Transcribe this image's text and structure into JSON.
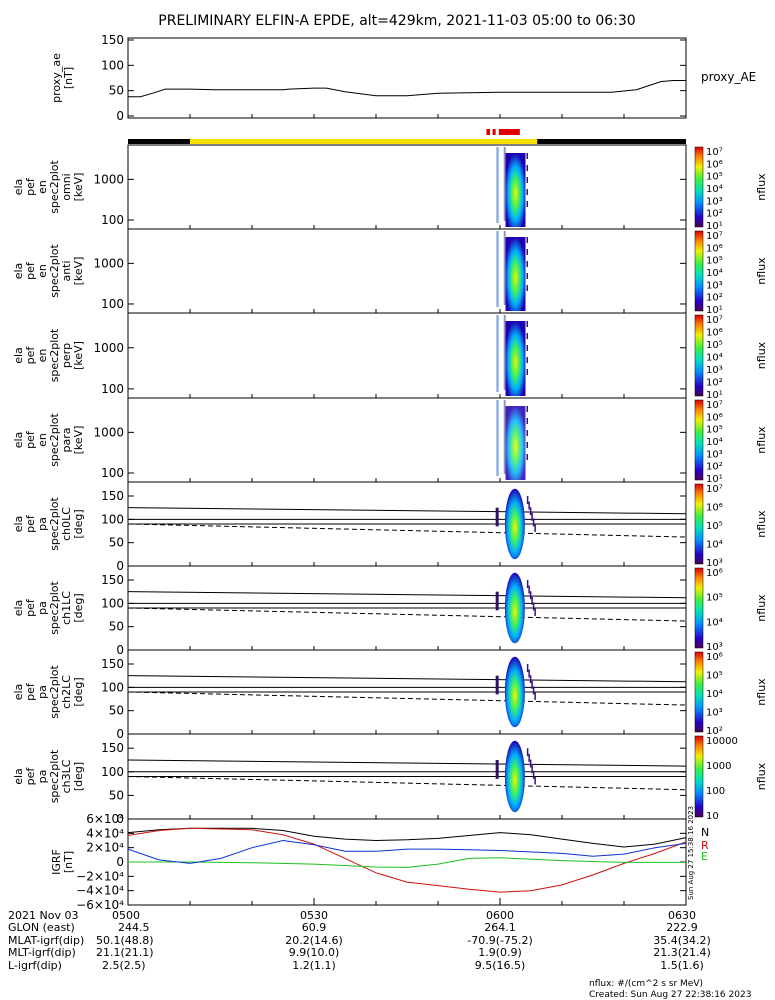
{
  "title": "PRELIMINARY ELFIN-A EPDE, alt=429km, 2021-11-03 05:00 to 06:30",
  "colors": {
    "axis": "#000000",
    "sci_yellow": "#f5e000",
    "sci_red": "#e00000",
    "grf_n": "#000000",
    "grf_r": "#d01010",
    "grf_e": "#20c020",
    "grf_z": "#1030d0",
    "label_n": "#000000",
    "label_r": "#d01010",
    "label_e": "#20c020",
    "label_z": "#9a2ad0"
  },
  "chart_data": [
    {
      "type": "line",
      "id": "proxy_ae",
      "ylabel": [
        "proxy_ae",
        "[nT]"
      ],
      "ylim": [
        0,
        150
      ],
      "yticks": [
        0,
        50,
        100,
        150
      ],
      "legend": "proxy_AE",
      "xlim": [
        0,
        90
      ],
      "series": [
        {
          "name": "proxy_AE",
          "x": [
            0,
            2,
            4,
            6,
            8,
            10,
            14,
            20,
            25,
            26,
            30,
            32,
            35,
            40,
            45,
            50,
            60,
            70,
            78,
            82,
            84,
            86,
            88,
            90
          ],
          "y": [
            38,
            38,
            45,
            53,
            53,
            53,
            52,
            52,
            52,
            53,
            55,
            55,
            48,
            40,
            40,
            45,
            47,
            47,
            47,
            52,
            60,
            68,
            70,
            70
          ]
        }
      ]
    },
    {
      "type": "bar",
      "id": "science_zone_bar",
      "segments": [
        {
          "x0": 0,
          "x1": 10,
          "color": "#000000"
        },
        {
          "x0": 10,
          "x1": 66,
          "color": "#f5e000"
        },
        {
          "x0": 66,
          "x1": 90,
          "color": "#000000"
        },
        {
          "x0": 57.8,
          "x1": 58.4,
          "color": "#e00000"
        },
        {
          "x0": 58.8,
          "x1": 59.3,
          "color": "#e00000"
        },
        {
          "x0": 59.8,
          "x1": 63.2,
          "color": "#e00000"
        }
      ]
    },
    {
      "type": "heatmap",
      "id": "spec_omni",
      "ylabel": [
        "ela",
        "pef",
        "en",
        "spec2plot",
        "omni",
        "[keV]"
      ],
      "ylog": true,
      "ylim": [
        60,
        7000
      ],
      "yticks": [
        100,
        1000
      ],
      "colorbar": {
        "label": "nflux",
        "ticks": [
          "10¹",
          "10²",
          "10³",
          "10⁴",
          "10⁵",
          "10⁶",
          "10⁷"
        ]
      }
    },
    {
      "type": "heatmap",
      "id": "spec_anti",
      "ylabel": [
        "ela",
        "pef",
        "en",
        "spec2plot",
        "anti",
        "[keV]"
      ],
      "ylog": true,
      "ylim": [
        60,
        7000
      ],
      "yticks": [
        100,
        1000
      ],
      "colorbar": {
        "label": "nflux",
        "ticks": [
          "10¹",
          "10²",
          "10³",
          "10⁴",
          "10⁵",
          "10⁶",
          "10⁷"
        ]
      }
    },
    {
      "type": "heatmap",
      "id": "spec_perp",
      "ylabel": [
        "ela",
        "pef",
        "en",
        "spec2plot",
        "perp",
        "[keV]"
      ],
      "ylog": true,
      "ylim": [
        60,
        7000
      ],
      "yticks": [
        100,
        1000
      ],
      "colorbar": {
        "label": "nflux",
        "ticks": [
          "10¹",
          "10²",
          "10³",
          "10⁴",
          "10⁵",
          "10⁶",
          "10⁷"
        ]
      }
    },
    {
      "type": "heatmap",
      "id": "spec_para",
      "ylabel": [
        "ela",
        "pef",
        "en",
        "spec2plot",
        "para",
        "[keV]"
      ],
      "ylog": true,
      "ylim": [
        60,
        7000
      ],
      "yticks": [
        100,
        1000
      ],
      "colorbar": {
        "label": "nflux",
        "ticks": [
          "10¹",
          "10²",
          "10³",
          "10⁴",
          "10⁵",
          "10⁶",
          "10⁷"
        ]
      }
    },
    {
      "type": "heatmap",
      "id": "pa_ch0",
      "ylabel": [
        "ela",
        "pef",
        "pa",
        "spec2plot",
        "ch0LC",
        "[deg]"
      ],
      "ylim": [
        0,
        180
      ],
      "yticks": [
        0,
        50,
        100,
        150
      ],
      "colorbar": {
        "label": "nflux",
        "ticks": [
          "10³",
          "10⁴",
          "10⁵",
          "10⁶",
          "10⁷"
        ]
      }
    },
    {
      "type": "heatmap",
      "id": "pa_ch1",
      "ylabel": [
        "ela",
        "pef",
        "pa",
        "spec2plot",
        "ch1LC",
        "[deg]"
      ],
      "ylim": [
        0,
        180
      ],
      "yticks": [
        0,
        50,
        100,
        150
      ],
      "colorbar": {
        "label": "nflux",
        "ticks": [
          "10³",
          "10⁴",
          "10⁵",
          "10⁶"
        ]
      }
    },
    {
      "type": "heatmap",
      "id": "pa_ch2",
      "ylabel": [
        "ela",
        "pef",
        "pa",
        "spec2plot",
        "ch2LC",
        "[deg]"
      ],
      "ylim": [
        0,
        180
      ],
      "yticks": [
        0,
        50,
        100,
        150
      ],
      "colorbar": {
        "label": "nflux",
        "ticks": [
          "10²",
          "10³",
          "10⁴",
          "10⁵",
          "10⁶"
        ]
      }
    },
    {
      "type": "heatmap",
      "id": "pa_ch3",
      "ylabel": [
        "ela",
        "pef",
        "pa",
        "spec2plot",
        "ch3LC",
        "[deg]"
      ],
      "ylim": [
        0,
        180
      ],
      "yticks": [
        0,
        50,
        100,
        150
      ],
      "colorbar": {
        "label": "nflux",
        "ticks": [
          "10",
          "100",
          "1000",
          "10000"
        ]
      }
    },
    {
      "type": "line",
      "id": "igrf",
      "ylabel": [
        "IGRF",
        "[nT]"
      ],
      "ylim": [
        -60000,
        60000
      ],
      "yticks": [
        "6×10⁴",
        "4×10⁴",
        "2×10⁴",
        "0",
        "−2×10⁴",
        "−4×10⁴",
        "−6×10⁴"
      ],
      "legend": [
        "N",
        "R",
        "E"
      ],
      "xlim": [
        0,
        90
      ],
      "series": [
        {
          "name": "N",
          "x": [
            0,
            5,
            10,
            20,
            25,
            30,
            35,
            40,
            45,
            50,
            55,
            60,
            65,
            70,
            75,
            80,
            85,
            90
          ],
          "y": [
            41000,
            45000,
            47000,
            47000,
            44000,
            36000,
            32000,
            30000,
            31000,
            33000,
            37000,
            41000,
            38000,
            32000,
            26000,
            21000,
            25000,
            34000
          ]
        },
        {
          "name": "R",
          "x": [
            0,
            5,
            10,
            20,
            25,
            30,
            35,
            40,
            45,
            50,
            55,
            60,
            65,
            70,
            75,
            80,
            85,
            90
          ],
          "y": [
            37000,
            44000,
            47000,
            45000,
            38000,
            25000,
            5000,
            -15000,
            -28000,
            -33000,
            -38000,
            -42000,
            -40000,
            -32000,
            -18000,
            -2000,
            12000,
            28000
          ]
        },
        {
          "name": "E",
          "x": [
            0,
            10,
            20,
            30,
            40,
            45,
            50,
            55,
            60,
            70,
            80,
            90
          ],
          "y": [
            0,
            0,
            -1000,
            -3000,
            -7000,
            -7500,
            -3000,
            5000,
            6000,
            2000,
            -500,
            -500
          ]
        },
        {
          "name": "Z",
          "x": [
            0,
            5,
            10,
            15,
            20,
            25,
            30,
            35,
            40,
            45,
            50,
            55,
            60,
            70,
            75,
            80,
            85,
            90
          ],
          "y": [
            18000,
            3000,
            -2000,
            5000,
            20000,
            30000,
            24000,
            15000,
            15000,
            18000,
            18000,
            17000,
            16000,
            12000,
            8000,
            11000,
            20000,
            26000
          ]
        }
      ]
    }
  ],
  "x_axis": {
    "rows": [
      {
        "label": "2021 Nov 03",
        "values": [
          "0500",
          "0530",
          "0600",
          "0630"
        ]
      },
      {
        "label": "GLON (east)",
        "values": [
          "244.5",
          "60.9",
          "264.1",
          "222.9"
        ]
      },
      {
        "label": "MLAT-igrf(dip)",
        "values": [
          "50.1(48.8)",
          "20.2(14.6)",
          "-70.9(-75.2)",
          "35.4(34.2)"
        ]
      },
      {
        "label": "MLT-igrf(dip)",
        "values": [
          "21.1(21.1)",
          "9.9(10.0)",
          "1.9(0.9)",
          "21.3(21.4)"
        ]
      },
      {
        "label": "L-igrf(dip)",
        "values": [
          "2.5(2.5)",
          "1.2(1.1)",
          "9.5(16.5)",
          "1.5(1.6)"
        ]
      }
    ]
  },
  "footer": {
    "units": "nflux: #/(cm^2 s sr MeV)",
    "created": "Created: Sun Aug 27 22:38:16 2023",
    "side_stamp": "Sun Aug 27 15:38:16 2023"
  }
}
